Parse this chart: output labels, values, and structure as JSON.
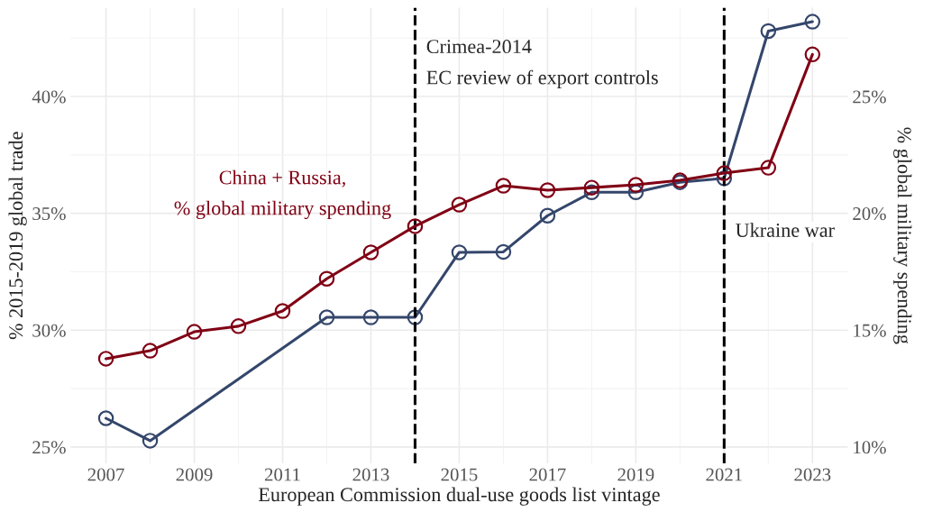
{
  "chart_data": {
    "type": "line",
    "xlabel": "European Commission dual-use goods list vintage",
    "ylabel": "% 2015-2019 global trade",
    "y2label": "% global military spending",
    "x": [
      2007,
      2008,
      2009,
      2010,
      2011,
      2012,
      2013,
      2014,
      2015,
      2016,
      2017,
      2018,
      2019,
      2020,
      2021,
      2022,
      2023
    ],
    "series": [
      {
        "color": "#34466b",
        "values": [
          26.23,
          25.27,
          null,
          null,
          null,
          30.55,
          30.55,
          30.55,
          33.33,
          33.35,
          34.9,
          35.9,
          35.9,
          36.33,
          36.5,
          42.8,
          43.2
        ]
      },
      {
        "name": "China + Russia,\n% global military spending",
        "color": "#800014",
        "axis": "y2",
        "values": [
          13.78,
          14.12,
          14.93,
          15.17,
          15.82,
          17.2,
          18.33,
          19.45,
          20.37,
          21.18,
          20.99,
          21.1,
          21.22,
          21.41,
          21.72,
          21.95,
          26.8
        ]
      }
    ],
    "xlim": [
      2006.2,
      2023.8
    ],
    "xticks": [
      2007,
      2009,
      2011,
      2013,
      2015,
      2017,
      2019,
      2021,
      2023
    ],
    "ylim": [
      24.3,
      43.8
    ],
    "yticks": [
      {
        "value": 25,
        "label": "25%"
      },
      {
        "value": 30,
        "label": "30%"
      },
      {
        "value": 35,
        "label": "35%"
      },
      {
        "value": 40,
        "label": "40%"
      }
    ],
    "y2lim": [
      9.3,
      28.8
    ],
    "y2ticks": [
      {
        "value": 10,
        "label": "10%"
      },
      {
        "value": 15,
        "label": "15%"
      },
      {
        "value": 20,
        "label": "20%"
      },
      {
        "value": 25,
        "label": "25%"
      }
    ],
    "ref_lines": [
      {
        "axis": "x",
        "value": 2014,
        "label": "Crimea-2014\nEC review of export controls",
        "color": "#000000",
        "line_style": "dashed"
      },
      {
        "axis": "x",
        "value": 2021,
        "label": "Ukraine war",
        "color": "#000000",
        "line_style": "dashed"
      }
    ],
    "grid": true,
    "marker": "circle",
    "line_style": "solid"
  }
}
